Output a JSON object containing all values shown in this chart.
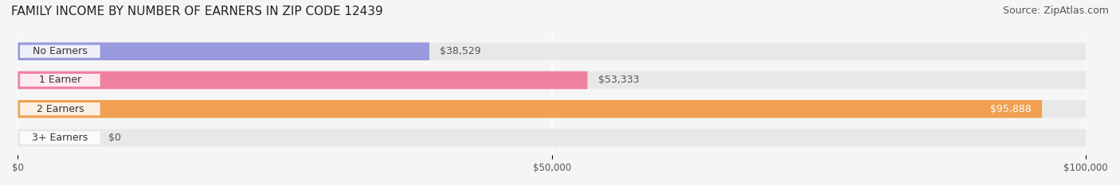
{
  "title": "FAMILY INCOME BY NUMBER OF EARNERS IN ZIP CODE 12439",
  "source": "Source: ZipAtlas.com",
  "categories": [
    "No Earners",
    "1 Earner",
    "2 Earners",
    "3+ Earners"
  ],
  "values": [
    38529,
    53333,
    95888,
    0
  ],
  "bar_colors": [
    "#9999dd",
    "#f080a0",
    "#f0a050",
    "#f0b0b0"
  ],
  "bar_bg_color": "#e8e8e8",
  "label_bg_colors": [
    "#9999dd",
    "#f080a0",
    "#f0a050",
    "#f0b0b0"
  ],
  "xlim": [
    0,
    100000
  ],
  "xticks": [
    0,
    50000,
    100000
  ],
  "xtick_labels": [
    "$0",
    "$50,000",
    "$100,000"
  ],
  "value_labels": [
    "$38,529",
    "$53,333",
    "$95,888",
    "$0"
  ],
  "title_fontsize": 11,
  "source_fontsize": 9,
  "label_fontsize": 9,
  "value_fontsize": 9,
  "background_color": "#f5f5f5"
}
